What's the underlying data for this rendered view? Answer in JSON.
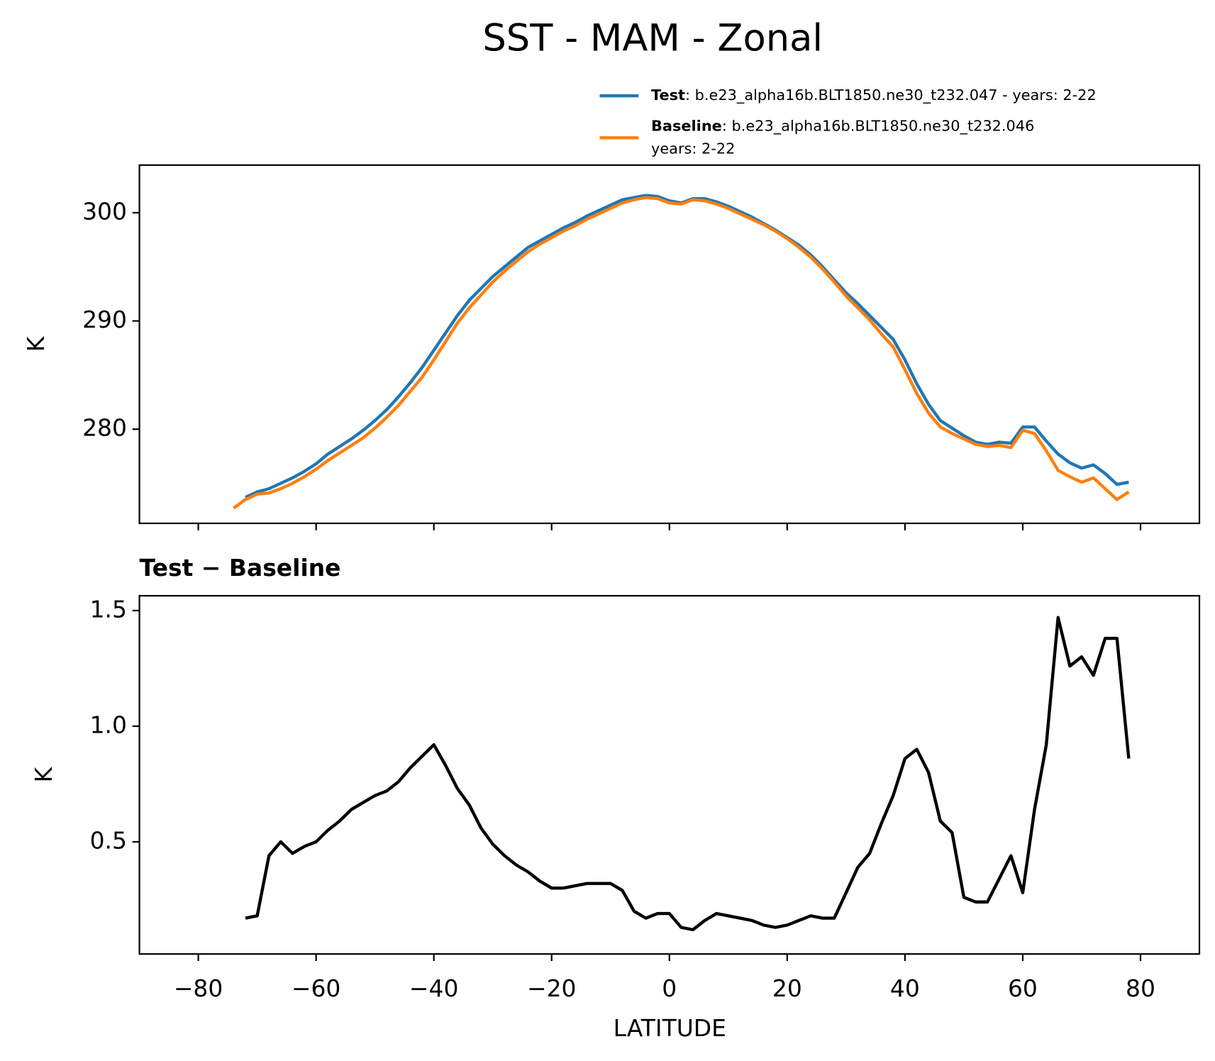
{
  "title": "SST - MAM - Zonal",
  "chart_data": [
    {
      "type": "line",
      "ylabel": "K",
      "x": [
        -74,
        -72,
        -70,
        -68,
        -66,
        -64,
        -62,
        -60,
        -58,
        -56,
        -54,
        -52,
        -50,
        -48,
        -46,
        -44,
        -42,
        -40,
        -38,
        -36,
        -34,
        -32,
        -30,
        -28,
        -26,
        -24,
        -22,
        -20,
        -18,
        -16,
        -14,
        -12,
        -10,
        -8,
        -6,
        -4,
        -2,
        0,
        2,
        4,
        6,
        8,
        10,
        12,
        14,
        16,
        18,
        20,
        22,
        24,
        26,
        28,
        30,
        32,
        34,
        36,
        38,
        40,
        42,
        44,
        46,
        48,
        50,
        52,
        54,
        56,
        58,
        60,
        62,
        64,
        66,
        68,
        70,
        72,
        74,
        76,
        78
      ],
      "series": [
        {
          "name": "Test",
          "label_lines": [
            ": b.e23_alpha16b.BLT1850.ne30_t232.047 - years: 2-22"
          ],
          "color": "#1f77b4",
          "values": [
            null,
            273.7,
            274.2,
            274.5,
            275.0,
            275.5,
            276.1,
            276.8,
            277.7,
            278.4,
            279.1,
            279.9,
            280.8,
            281.8,
            283.0,
            284.3,
            285.7,
            287.3,
            288.9,
            290.5,
            291.9,
            293.0,
            294.1,
            295.0,
            295.9,
            296.8,
            297.4,
            298.0,
            298.6,
            299.1,
            299.7,
            300.2,
            300.7,
            301.2,
            301.4,
            301.6,
            301.5,
            301.1,
            300.9,
            301.3,
            301.3,
            301.0,
            300.6,
            300.1,
            299.6,
            299.0,
            298.4,
            297.7,
            297.0,
            296.1,
            295.0,
            293.8,
            292.6,
            291.6,
            290.5,
            289.4,
            288.3,
            286.4,
            284.2,
            282.3,
            280.8,
            280.1,
            279.4,
            278.8,
            278.6,
            278.8,
            278.7,
            280.2,
            280.2,
            278.9,
            277.7,
            276.9,
            276.4,
            276.7,
            275.9,
            274.9,
            275.1
          ]
        },
        {
          "name": "Baseline",
          "label_lines": [
            ": b.e23_alpha16b.BLT1850.ne30_t232.046",
            "years: 2-22"
          ],
          "color": "#ff7f0e",
          "values": [
            272.7,
            273.5,
            274.0,
            274.1,
            274.5,
            275.0,
            275.6,
            276.3,
            277.1,
            277.8,
            278.5,
            279.2,
            280.1,
            281.1,
            282.2,
            283.5,
            284.8,
            286.4,
            288.1,
            289.8,
            291.2,
            292.4,
            293.6,
            294.6,
            295.5,
            296.4,
            297.1,
            297.7,
            298.3,
            298.8,
            299.4,
            299.9,
            300.4,
            300.9,
            301.2,
            301.4,
            301.3,
            300.9,
            300.8,
            301.2,
            301.1,
            300.8,
            300.4,
            299.9,
            299.4,
            298.9,
            298.3,
            297.6,
            296.8,
            295.9,
            294.8,
            293.6,
            292.3,
            291.2,
            290.1,
            288.8,
            287.6,
            285.5,
            283.3,
            281.5,
            280.2,
            279.6,
            279.1,
            278.6,
            278.4,
            278.5,
            278.3,
            279.9,
            279.6,
            278.0,
            276.2,
            275.6,
            275.1,
            275.5,
            274.5,
            273.5,
            274.2
          ]
        }
      ],
      "xlim": [
        -90,
        90
      ],
      "ylim": [
        271.3,
        304.4
      ],
      "yticks": [
        280,
        290,
        300
      ]
    },
    {
      "type": "line",
      "title": "Test − Baseline",
      "xlabel": "LATITUDE",
      "ylabel": "K",
      "color": "#000000",
      "x": [
        -74,
        -72,
        -70,
        -68,
        -66,
        -64,
        -62,
        -60,
        -58,
        -56,
        -54,
        -52,
        -50,
        -48,
        -46,
        -44,
        -42,
        -40,
        -38,
        -36,
        -34,
        -32,
        -30,
        -28,
        -26,
        -24,
        -22,
        -20,
        -18,
        -16,
        -14,
        -12,
        -10,
        -8,
        -6,
        -4,
        -2,
        0,
        2,
        4,
        6,
        8,
        10,
        12,
        14,
        16,
        18,
        20,
        22,
        24,
        26,
        28,
        30,
        32,
        34,
        36,
        38,
        40,
        42,
        44,
        46,
        48,
        50,
        52,
        54,
        56,
        58,
        60,
        62,
        64,
        66,
        68,
        70,
        72,
        74,
        76,
        78
      ],
      "values": [
        null,
        0.17,
        0.18,
        0.44,
        0.5,
        0.45,
        0.48,
        0.5,
        0.55,
        0.59,
        0.64,
        0.67,
        0.7,
        0.72,
        0.76,
        0.82,
        0.87,
        0.92,
        0.83,
        0.73,
        0.66,
        0.56,
        0.49,
        0.44,
        0.4,
        0.37,
        0.33,
        0.3,
        0.3,
        0.31,
        0.32,
        0.32,
        0.32,
        0.29,
        0.2,
        0.17,
        0.19,
        0.19,
        0.13,
        0.12,
        0.16,
        0.19,
        0.18,
        0.17,
        0.16,
        0.14,
        0.13,
        0.14,
        0.16,
        0.18,
        0.17,
        0.17,
        0.28,
        0.39,
        0.45,
        0.58,
        0.7,
        0.86,
        0.9,
        0.8,
        0.59,
        0.54,
        0.26,
        0.24,
        0.24,
        0.34,
        0.44,
        0.28,
        0.64,
        0.92,
        1.47,
        1.26,
        1.3,
        1.22,
        1.38,
        1.38,
        0.86
      ],
      "xlim": [
        -90,
        90
      ],
      "ylim": [
        0.015,
        1.564
      ],
      "yticks": [
        0.5,
        {
          "value": 1.0,
          "label": "1.0"
        },
        1.5
      ],
      "xticks": [
        {
          "value": -80,
          "label": "−80"
        },
        {
          "value": -60,
          "label": "−60"
        },
        {
          "value": -40,
          "label": "−40"
        },
        {
          "value": -20,
          "label": "−20"
        },
        0,
        20,
        40,
        60,
        80
      ]
    }
  ]
}
